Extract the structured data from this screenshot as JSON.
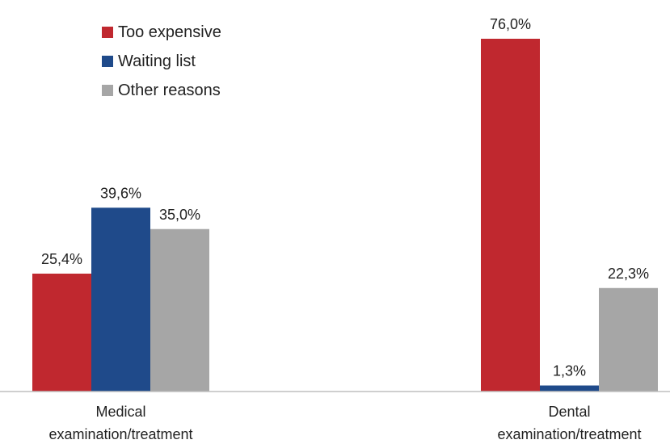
{
  "chart_data": {
    "type": "bar",
    "categories": [
      "Medical\nexamination/treatment",
      "Dental\nexamination/treatment"
    ],
    "series": [
      {
        "name": "Too expensive",
        "color": "#C0282F",
        "values": [
          25.4,
          76.0
        ],
        "labels": [
          "25,4%",
          "76,0%"
        ]
      },
      {
        "name": "Waiting list",
        "color": "#1F4A8A",
        "values": [
          39.6,
          1.3
        ],
        "labels": [
          "39,6%",
          "1,3%"
        ]
      },
      {
        "name": "Other reasons",
        "color": "#A6A6A6",
        "values": [
          35.0,
          22.3
        ],
        "labels": [
          "35,0%",
          "22,3%"
        ]
      }
    ],
    "ylim": [
      0,
      80
    ],
    "legend_position": "top-left",
    "grid": false
  }
}
